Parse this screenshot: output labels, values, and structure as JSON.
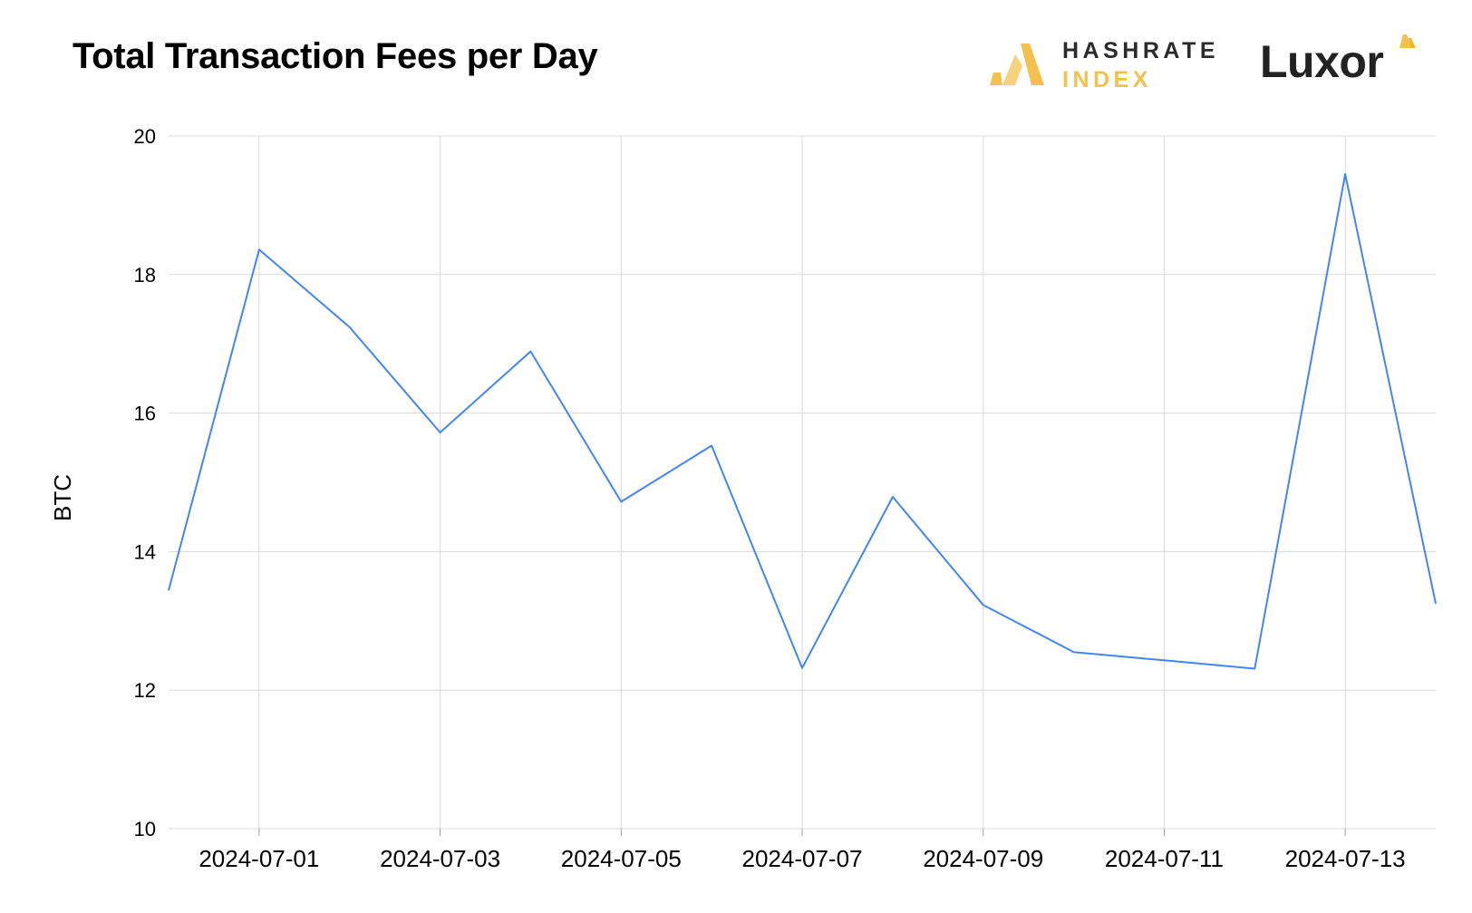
{
  "header": {
    "title": "Total Transaction Fees per Day"
  },
  "logos": {
    "hashrate_line1": "HASHRATE",
    "hashrate_line2": "INDEX",
    "luxor": "Luxor",
    "hashrate_icon": "hashrate-index-icon",
    "luxor_icon": "luxor-triangle-icon"
  },
  "colors": {
    "line": "#4285f4",
    "grid": "#d9d9d9",
    "brand_gold": "#f2c14e",
    "brand_dark": "#2b2b2b"
  },
  "chart_data": {
    "type": "line",
    "title": "Total Transaction Fees per Day",
    "xlabel": "",
    "ylabel": "BTC",
    "x": [
      "2024-06-30",
      "2024-07-01",
      "2024-07-02",
      "2024-07-03",
      "2024-07-04",
      "2024-07-05",
      "2024-07-06",
      "2024-07-07",
      "2024-07-08",
      "2024-07-09",
      "2024-07-10",
      "2024-07-11",
      "2024-07-12",
      "2024-07-13",
      "2024-07-14"
    ],
    "series": [
      {
        "values": [
          13.44,
          18.36,
          17.24,
          15.72,
          16.89,
          14.72,
          15.53,
          12.32,
          14.79,
          13.23,
          12.55,
          12.43,
          12.31,
          19.45,
          13.25
        ]
      }
    ],
    "x_ticks": [
      "2024-07-01",
      "2024-07-03",
      "2024-07-05",
      "2024-07-07",
      "2024-07-09",
      "2024-07-11",
      "2024-07-13"
    ],
    "y_ticks": [
      10,
      12,
      14,
      16,
      18,
      20
    ],
    "ylim": [
      10,
      20
    ],
    "grid": true,
    "legend": "none"
  }
}
